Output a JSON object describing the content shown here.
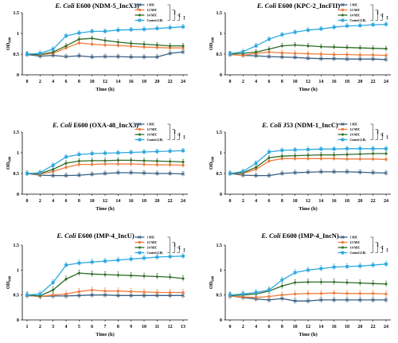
{
  "colors": {
    "1 MIC": "#3a5f80",
    "1/2 MIC": "#ee7d3f",
    "1/4 MIC": "#2e6b27",
    "Control (LB)": "#2ea9e0"
  },
  "chart_data": [
    {
      "type": "line",
      "title_species": "E. Coli",
      "title_rest": "E600 (NDM-5_IncX3)",
      "xlabel": "Time (h)",
      "ylabel": "OD",
      "ylabel_sub": "600",
      "ylim": [
        0,
        1.5
      ],
      "yticks": [
        0,
        0.5,
        1,
        1.5
      ],
      "x": [
        0,
        2,
        4,
        6,
        8,
        10,
        12,
        14,
        16,
        18,
        20,
        22,
        24
      ],
      "series": [
        {
          "name": "1 MIC",
          "values": [
            0.49,
            0.45,
            0.47,
            0.44,
            0.46,
            0.43,
            0.44,
            0.44,
            0.43,
            0.43,
            0.43,
            0.52,
            0.55
          ]
        },
        {
          "name": "1/2 MIC",
          "values": [
            0.5,
            0.48,
            0.52,
            0.65,
            0.77,
            0.74,
            0.72,
            0.71,
            0.69,
            0.67,
            0.66,
            0.65,
            0.65
          ]
        },
        {
          "name": "1/4 MIC",
          "values": [
            0.5,
            0.49,
            0.55,
            0.7,
            0.86,
            0.88,
            0.83,
            0.79,
            0.76,
            0.74,
            0.72,
            0.7,
            0.7
          ]
        },
        {
          "name": "Control (LB)",
          "values": [
            0.5,
            0.52,
            0.62,
            0.94,
            1.01,
            1.05,
            1.05,
            1.08,
            1.09,
            1.1,
            1.12,
            1.14,
            1.16
          ]
        }
      ],
      "significance": [
        "**",
        "**",
        "**"
      ]
    },
    {
      "type": "line",
      "title_species": "E. Coli",
      "title_rest": "E600 (KPC-2_IncFII)",
      "xlabel": "Time (h)",
      "ylabel": "OD",
      "ylabel_sub": "600",
      "ylim": [
        0,
        1.5
      ],
      "yticks": [
        0,
        0.5,
        1,
        1.5
      ],
      "x": [
        0,
        2,
        4,
        6,
        8,
        10,
        12,
        14,
        16,
        18,
        20,
        22,
        24
      ],
      "series": [
        {
          "name": "1 MIC",
          "values": [
            0.49,
            0.47,
            0.46,
            0.44,
            0.43,
            0.42,
            0.4,
            0.39,
            0.39,
            0.38,
            0.38,
            0.38,
            0.37
          ]
        },
        {
          "name": "1/2 MIC",
          "values": [
            0.49,
            0.47,
            0.52,
            0.55,
            0.53,
            0.52,
            0.51,
            0.5,
            0.49,
            0.49,
            0.48,
            0.48,
            0.47
          ]
        },
        {
          "name": "1/4 MIC",
          "values": [
            0.5,
            0.52,
            0.55,
            0.62,
            0.7,
            0.72,
            0.7,
            0.68,
            0.67,
            0.66,
            0.65,
            0.64,
            0.63
          ]
        },
        {
          "name": "Control (LB)",
          "values": [
            0.51,
            0.56,
            0.7,
            0.86,
            0.97,
            1.03,
            1.08,
            1.11,
            1.15,
            1.18,
            1.19,
            1.21,
            1.22
          ]
        }
      ],
      "significance": [
        "**",
        "**",
        "**"
      ]
    },
    {
      "type": "line",
      "title_species": "E. Coli",
      "title_rest": "E600 (OXA-48_IncX3)",
      "xlabel": "Time (h)",
      "ylabel": "OD",
      "ylabel_sub": "600",
      "ylim": [
        0,
        1.5
      ],
      "yticks": [
        0,
        0.5,
        1,
        1.5
      ],
      "x": [
        0,
        2,
        4,
        6,
        8,
        10,
        12,
        14,
        16,
        18,
        20,
        22,
        24
      ],
      "series": [
        {
          "name": "1 MIC",
          "values": [
            0.5,
            0.46,
            0.45,
            0.45,
            0.46,
            0.48,
            0.5,
            0.52,
            0.52,
            0.51,
            0.5,
            0.5,
            0.49
          ]
        },
        {
          "name": "1/2 MIC",
          "values": [
            0.5,
            0.48,
            0.55,
            0.65,
            0.72,
            0.72,
            0.73,
            0.73,
            0.73,
            0.72,
            0.71,
            0.71,
            0.7
          ]
        },
        {
          "name": "1/4 MIC",
          "values": [
            0.5,
            0.5,
            0.6,
            0.75,
            0.8,
            0.81,
            0.81,
            0.82,
            0.82,
            0.81,
            0.8,
            0.79,
            0.78
          ]
        },
        {
          "name": "Control (LB)",
          "values": [
            0.5,
            0.52,
            0.7,
            0.9,
            0.96,
            0.98,
            0.99,
            1.0,
            1.01,
            1.02,
            1.03,
            1.04,
            1.05
          ]
        }
      ],
      "significance": [
        "**",
        "**",
        "**"
      ]
    },
    {
      "type": "line",
      "title_species": "E. Coli",
      "title_rest": "J53 (NDM-1_IncC)",
      "xlabel": "Time (h)",
      "ylabel": "OD",
      "ylabel_sub": "600",
      "ylim": [
        0,
        1.5
      ],
      "yticks": [
        0,
        0.5,
        1,
        1.5
      ],
      "x": [
        0,
        2,
        4,
        6,
        8,
        10,
        12,
        14,
        16,
        18,
        20,
        22,
        24
      ],
      "series": [
        {
          "name": "1 MIC",
          "values": [
            0.5,
            0.46,
            0.45,
            0.45,
            0.5,
            0.52,
            0.53,
            0.54,
            0.54,
            0.54,
            0.53,
            0.52,
            0.51
          ]
        },
        {
          "name": "1/2 MIC",
          "values": [
            0.5,
            0.5,
            0.6,
            0.8,
            0.86,
            0.86,
            0.86,
            0.86,
            0.86,
            0.85,
            0.85,
            0.85,
            0.84
          ]
        },
        {
          "name": "1/4 MIC",
          "values": [
            0.5,
            0.52,
            0.65,
            0.88,
            0.92,
            0.93,
            0.94,
            0.95,
            0.95,
            0.96,
            0.97,
            0.98,
            0.98
          ]
        },
        {
          "name": "Control (LB)",
          "values": [
            0.5,
            0.55,
            0.75,
            1.02,
            1.06,
            1.07,
            1.08,
            1.09,
            1.09,
            1.1,
            1.1,
            1.1,
            1.1
          ]
        }
      ],
      "significance": [
        "**",
        "**",
        "**"
      ]
    },
    {
      "type": "line",
      "title_species": "E. Coli",
      "title_rest": "E600 (IMP-4_IncU)",
      "xlabel": "Time (h)",
      "ylabel": "OD",
      "ylabel_sub": "600",
      "ylim": [
        0,
        1.5
      ],
      "yticks": [
        0,
        0.5,
        1,
        1.5
      ],
      "x": [
        1,
        2,
        3,
        4,
        5,
        6,
        7,
        8,
        9,
        10,
        11,
        12,
        13
      ],
      "series": [
        {
          "name": "1 MIC",
          "values": [
            0.49,
            0.47,
            0.48,
            0.48,
            0.49,
            0.5,
            0.5,
            0.49,
            0.49,
            0.49,
            0.49,
            0.49,
            0.49
          ]
        },
        {
          "name": "1/2 MIC",
          "values": [
            0.49,
            0.47,
            0.5,
            0.52,
            0.57,
            0.6,
            0.58,
            0.58,
            0.57,
            0.56,
            0.55,
            0.55,
            0.55
          ]
        },
        {
          "name": "1/4 MIC",
          "values": [
            0.5,
            0.48,
            0.6,
            0.82,
            0.94,
            0.92,
            0.91,
            0.9,
            0.89,
            0.88,
            0.87,
            0.86,
            0.83
          ]
        },
        {
          "name": "Control (LB)",
          "values": [
            0.5,
            0.52,
            0.75,
            1.1,
            1.14,
            1.16,
            1.18,
            1.2,
            1.22,
            1.24,
            1.26,
            1.27,
            1.28
          ]
        }
      ],
      "significance": [
        "**",
        "**",
        "**"
      ]
    },
    {
      "type": "line",
      "title_species": "E. Coli",
      "title_rest": "E600 (IMP-4_IncN)",
      "xlabel": "Time (h)",
      "ylabel": "OD",
      "ylabel_sub": "600",
      "ylim": [
        0,
        1.5
      ],
      "yticks": [
        0,
        0.5,
        1,
        1.5
      ],
      "x": [
        0,
        2,
        4,
        6,
        8,
        10,
        12,
        14,
        16,
        18,
        20,
        22,
        24
      ],
      "series": [
        {
          "name": "1 MIC",
          "values": [
            0.48,
            0.45,
            0.42,
            0.4,
            0.43,
            0.38,
            0.38,
            0.4,
            0.4,
            0.4,
            0.4,
            0.4,
            0.4
          ]
        },
        {
          "name": "1/2 MIC",
          "values": [
            0.48,
            0.46,
            0.45,
            0.47,
            0.5,
            0.52,
            0.53,
            0.53,
            0.54,
            0.53,
            0.53,
            0.53,
            0.52
          ]
        },
        {
          "name": "1/4 MIC",
          "values": [
            0.49,
            0.5,
            0.52,
            0.58,
            0.68,
            0.75,
            0.76,
            0.76,
            0.76,
            0.75,
            0.74,
            0.73,
            0.72
          ]
        },
        {
          "name": "Control (LB)",
          "values": [
            0.5,
            0.52,
            0.55,
            0.6,
            0.8,
            0.95,
            1.0,
            1.03,
            1.06,
            1.07,
            1.08,
            1.1,
            1.12
          ]
        }
      ],
      "significance": [
        "**",
        "**",
        "**"
      ]
    }
  ]
}
